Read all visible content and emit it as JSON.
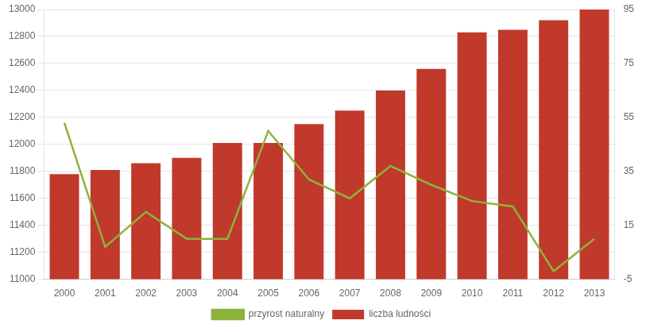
{
  "chart_data": {
    "type": "bar",
    "categories": [
      "2000",
      "2001",
      "2002",
      "2003",
      "2004",
      "2005",
      "2006",
      "2007",
      "2008",
      "2009",
      "2010",
      "2011",
      "2012",
      "2013"
    ],
    "series": [
      {
        "name": "liczba ludności",
        "type": "bar",
        "color": "#c0392b",
        "values": [
          11780,
          11810,
          11860,
          11900,
          12010,
          12010,
          12150,
          12250,
          12400,
          12560,
          12830,
          12850,
          12920,
          13000
        ]
      },
      {
        "name": "przyrost naturalny",
        "type": "line",
        "color": "#8db33a",
        "axis": "y2",
        "marker": "none",
        "values": [
          53,
          7,
          20,
          10,
          10,
          50,
          32,
          25,
          37,
          30,
          24,
          22,
          -2,
          10
        ]
      }
    ],
    "ylim": [
      11000,
      13000
    ],
    "yticks": [
      11000,
      11200,
      11400,
      11600,
      11800,
      12000,
      12200,
      12400,
      12600,
      12800,
      13000
    ],
    "y2lim": [
      -5,
      95
    ],
    "y2ticks": [
      -5,
      15,
      35,
      55,
      75,
      95
    ],
    "grid": true,
    "legend": "bottom"
  }
}
